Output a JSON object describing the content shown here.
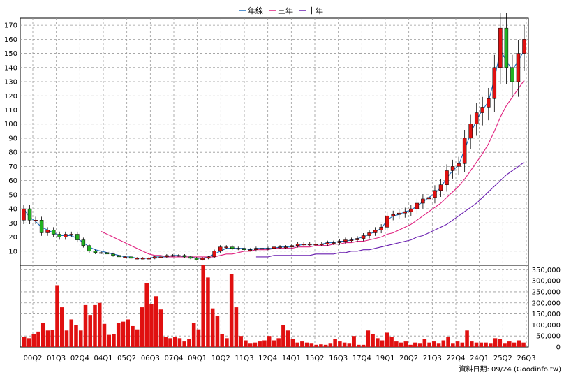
{
  "legend": [
    {
      "name": "年線",
      "color": "#1f6fbf"
    },
    {
      "name": "三年",
      "color": "#e0207f"
    },
    {
      "name": "十年",
      "color": "#6a1fb0"
    }
  ],
  "credit": "資料日期: 09/24  (Goodinfo.tw)",
  "colors": {
    "up_candle": "#e01010",
    "down_candle": "#21b221",
    "volume_bar": "#e01010",
    "grid": "#999999",
    "background": "#ffffff"
  },
  "chart_data": [
    {
      "type": "candlestick",
      "title": "",
      "xlabel": "",
      "ylabel": "",
      "ylim": [
        0,
        175
      ],
      "y_ticks": [
        10,
        20,
        30,
        40,
        50,
        60,
        70,
        80,
        90,
        100,
        110,
        120,
        130,
        140,
        150,
        160,
        170
      ],
      "x_tick_labels": [
        "00Q2",
        "01Q3",
        "02Q4",
        "04Q1",
        "05Q2",
        "06Q3",
        "07Q4",
        "09Q1",
        "10Q2",
        "11Q3",
        "12Q4",
        "14Q1",
        "15Q2",
        "16Q3",
        "17Q4",
        "19Q1",
        "20Q2",
        "21Q3",
        "22Q4",
        "24Q1",
        "25Q2",
        "26Q3"
      ],
      "grid": true,
      "x_quarters_start": "2000Q2",
      "closes": [
        40,
        32,
        32,
        23,
        25,
        22,
        20,
        22,
        22,
        18,
        14,
        10,
        9,
        9,
        8,
        7,
        6,
        6,
        5,
        5,
        5,
        5,
        6,
        6,
        7,
        7,
        7,
        6,
        5,
        4,
        5,
        6,
        10,
        13,
        13,
        12,
        12,
        11,
        11,
        12,
        12,
        12,
        13,
        13,
        13,
        14,
        15,
        15,
        15,
        15,
        15,
        16,
        16,
        17,
        18,
        18,
        19,
        21,
        23,
        25,
        27,
        35,
        36,
        37,
        38,
        40,
        44,
        47,
        48,
        53,
        57,
        67,
        70,
        72,
        90,
        100,
        108,
        112,
        118,
        140,
        168,
        140,
        130,
        150,
        160
      ],
      "series": [
        {
          "name": "年線",
          "values": [
            40,
            34,
            31,
            27,
            25,
            23,
            21,
            21,
            21,
            19,
            16,
            13,
            11,
            10,
            9,
            8,
            7,
            6,
            6,
            5,
            5,
            5,
            6,
            6,
            6,
            7,
            7,
            6,
            6,
            5,
            5,
            6,
            8,
            10,
            12,
            12,
            12,
            12,
            11,
            12,
            12,
            12,
            12,
            13,
            13,
            13,
            14,
            15,
            15,
            15,
            15,
            16,
            16,
            17,
            17,
            18,
            19,
            20,
            22,
            24,
            26,
            32,
            35,
            36,
            38,
            39,
            42,
            45,
            48,
            51,
            55,
            62,
            67,
            71,
            82,
            93,
            103,
            110,
            116,
            132,
            152,
            145,
            138,
            145,
            152
          ]
        },
        {
          "name": "三年",
          "values": [
            null,
            null,
            null,
            null,
            null,
            null,
            null,
            null,
            null,
            null,
            null,
            null,
            null,
            24,
            22,
            20,
            18,
            16,
            14,
            12,
            10,
            8,
            7,
            7,
            6,
            6,
            6,
            6,
            6,
            6,
            6,
            6,
            6,
            7,
            8,
            8,
            9,
            10,
            10,
            11,
            11,
            11,
            12,
            12,
            12,
            12,
            13,
            13,
            13,
            14,
            14,
            14,
            15,
            15,
            16,
            16,
            17,
            17,
            18,
            19,
            20,
            22,
            23,
            25,
            27,
            29,
            32,
            35,
            38,
            41,
            44,
            48,
            52,
            56,
            61,
            67,
            73,
            79,
            86,
            95,
            105,
            113,
            119,
            125,
            131
          ]
        },
        {
          "name": "十年",
          "values": [
            null,
            null,
            null,
            null,
            null,
            null,
            null,
            null,
            null,
            null,
            null,
            null,
            null,
            null,
            null,
            null,
            null,
            null,
            null,
            null,
            null,
            null,
            null,
            null,
            null,
            null,
            null,
            null,
            null,
            null,
            null,
            null,
            null,
            null,
            null,
            null,
            null,
            null,
            null,
            6,
            6,
            6,
            7,
            7,
            7,
            7,
            7,
            7,
            7,
            8,
            8,
            8,
            8,
            9,
            9,
            10,
            10,
            11,
            11,
            12,
            13,
            14,
            15,
            16,
            17,
            18,
            20,
            21,
            23,
            25,
            27,
            29,
            32,
            35,
            38,
            41,
            44,
            48,
            52,
            56,
            60,
            64,
            67,
            70,
            73
          ]
        }
      ]
    },
    {
      "type": "bar",
      "title": "",
      "xlabel": "",
      "ylabel": "",
      "ylim": [
        0,
        370000
      ],
      "y_ticks": [
        0,
        50000,
        100000,
        150000,
        200000,
        250000,
        300000,
        350000
      ],
      "y_tick_labels": [
        "0",
        "50,000",
        "100,000",
        "150,000",
        "200,000",
        "250,000",
        "300,000",
        "350,000"
      ],
      "values": [
        45000,
        40000,
        60000,
        70000,
        110000,
        75000,
        78000,
        280000,
        180000,
        75000,
        125000,
        100000,
        75000,
        190000,
        145000,
        190000,
        200000,
        105000,
        55000,
        60000,
        110000,
        115000,
        125000,
        95000,
        80000,
        180000,
        290000,
        195000,
        230000,
        170000,
        45000,
        40000,
        45000,
        40000,
        25000,
        35000,
        110000,
        80000,
        380000,
        315000,
        175000,
        140000,
        60000,
        40000,
        330000,
        180000,
        50000,
        30000,
        15000,
        20000,
        25000,
        30000,
        50000,
        30000,
        40000,
        100000,
        75000,
        35000,
        20000,
        25000,
        20000,
        15000,
        10000,
        12000,
        10000,
        15000,
        35000,
        25000,
        20000,
        15000,
        50000,
        10000,
        10000,
        75000,
        60000,
        40000,
        30000,
        65000,
        45000,
        25000,
        20000,
        25000,
        10000,
        20000,
        15000,
        35000,
        20000,
        25000,
        15000,
        30000,
        45000,
        15000,
        25000,
        20000,
        75000,
        25000,
        20000,
        20000,
        20000,
        15000,
        40000,
        35000,
        15000,
        25000,
        20000,
        30000,
        20000
      ]
    }
  ]
}
